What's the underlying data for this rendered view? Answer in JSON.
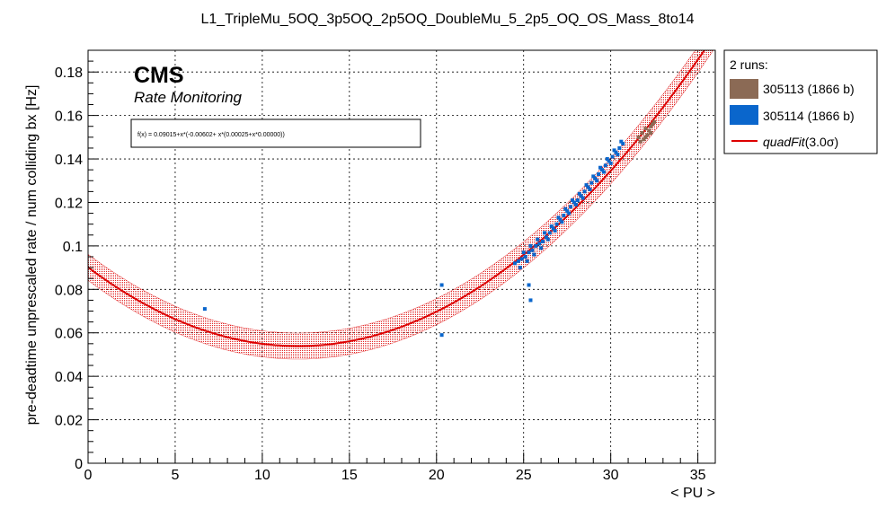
{
  "chart_data": {
    "type": "scatter",
    "title": "L1_TripleMu_5OQ_3p5OQ_2p5OQ_DoubleMu_5_2p5_OQ_OS_Mass_8to14",
    "xlabel": "< PU >",
    "ylabel": "pre-deadtime unprescaled rate / num colliding bx [Hz]",
    "xlim": [
      0,
      36
    ],
    "ylim": [
      0,
      0.19
    ],
    "x_ticks": [
      "0",
      "5",
      "10",
      "15",
      "20",
      "25",
      "30",
      "35"
    ],
    "y_ticks": [
      "0",
      "0.02",
      "0.04",
      "0.06",
      "0.08",
      "0.1",
      "0.12",
      "0.14",
      "0.16",
      "0.18"
    ],
    "grid": true,
    "legend_position": "right",
    "cms_label": "CMS",
    "cms_sublabel": "Rate Monitoring",
    "fit_formula": "f(x) = 0.09015+x*(-0.00602+ x*(0.00025+x*0.00000))",
    "fit": {
      "a": 0.09015,
      "b": -0.00602,
      "c": 0.00025,
      "band": 0.006,
      "color": "#dd0000"
    },
    "legend": {
      "header": "2 runs:",
      "entries": [
        {
          "label": "305113 (1866 b)",
          "color": "#8b6a55",
          "kind": "box"
        },
        {
          "label": "305114 (1866 b)",
          "color": "#0a66cc",
          "kind": "box"
        },
        {
          "label": "quadFit",
          "suffix": "(3.0σ)",
          "color": "#dd0000",
          "kind": "line"
        }
      ]
    },
    "series": [
      {
        "name": "305113 (1866 b)",
        "color": "#8b6a55",
        "points": [
          [
            31.6,
            0.15
          ],
          [
            31.8,
            0.152
          ],
          [
            32.0,
            0.154
          ],
          [
            32.1,
            0.151
          ],
          [
            32.3,
            0.155
          ],
          [
            31.9,
            0.149
          ],
          [
            32.2,
            0.153
          ],
          [
            32.4,
            0.156
          ],
          [
            31.7,
            0.148
          ],
          [
            32.5,
            0.157
          ],
          [
            32.0,
            0.15
          ],
          [
            32.3,
            0.152
          ]
        ]
      },
      {
        "name": "305114 (1866 b)",
        "color": "#0a66cc",
        "points": [
          [
            6.7,
            0.071
          ],
          [
            20.3,
            0.082
          ],
          [
            20.3,
            0.059
          ],
          [
            25.3,
            0.082
          ],
          [
            25.4,
            0.075
          ],
          [
            24.5,
            0.092
          ],
          [
            24.7,
            0.093
          ],
          [
            24.9,
            0.094
          ],
          [
            25.1,
            0.095
          ],
          [
            25.3,
            0.097
          ],
          [
            25.5,
            0.098
          ],
          [
            25.7,
            0.1
          ],
          [
            25.9,
            0.101
          ],
          [
            26.1,
            0.102
          ],
          [
            26.3,
            0.104
          ],
          [
            26.5,
            0.106
          ],
          [
            26.7,
            0.108
          ],
          [
            26.9,
            0.11
          ],
          [
            27.1,
            0.112
          ],
          [
            27.3,
            0.114
          ],
          [
            27.5,
            0.116
          ],
          [
            27.7,
            0.118
          ],
          [
            27.9,
            0.12
          ],
          [
            28.1,
            0.121
          ],
          [
            28.3,
            0.123
          ],
          [
            28.5,
            0.125
          ],
          [
            28.7,
            0.127
          ],
          [
            28.9,
            0.129
          ],
          [
            29.1,
            0.131
          ],
          [
            29.3,
            0.133
          ],
          [
            29.5,
            0.135
          ],
          [
            29.7,
            0.137
          ],
          [
            29.9,
            0.139
          ],
          [
            30.1,
            0.141
          ],
          [
            30.3,
            0.143
          ],
          [
            30.5,
            0.145
          ],
          [
            30.7,
            0.147
          ],
          [
            24.8,
            0.09
          ],
          [
            25.2,
            0.093
          ],
          [
            25.6,
            0.096
          ],
          [
            26.0,
            0.099
          ],
          [
            26.4,
            0.103
          ],
          [
            26.8,
            0.107
          ],
          [
            27.2,
            0.111
          ],
          [
            27.6,
            0.115
          ],
          [
            28.0,
            0.119
          ],
          [
            28.4,
            0.122
          ],
          [
            28.8,
            0.126
          ],
          [
            29.2,
            0.13
          ],
          [
            29.6,
            0.134
          ],
          [
            30.0,
            0.138
          ],
          [
            30.4,
            0.142
          ],
          [
            25.0,
            0.097
          ],
          [
            25.4,
            0.1
          ],
          [
            25.8,
            0.103
          ],
          [
            26.2,
            0.106
          ],
          [
            26.6,
            0.109
          ],
          [
            27.0,
            0.113
          ],
          [
            27.4,
            0.117
          ],
          [
            27.8,
            0.121
          ],
          [
            28.2,
            0.124
          ],
          [
            28.6,
            0.128
          ],
          [
            29.0,
            0.132
          ],
          [
            29.4,
            0.136
          ],
          [
            29.8,
            0.14
          ],
          [
            30.2,
            0.144
          ],
          [
            30.6,
            0.148
          ]
        ]
      }
    ]
  }
}
